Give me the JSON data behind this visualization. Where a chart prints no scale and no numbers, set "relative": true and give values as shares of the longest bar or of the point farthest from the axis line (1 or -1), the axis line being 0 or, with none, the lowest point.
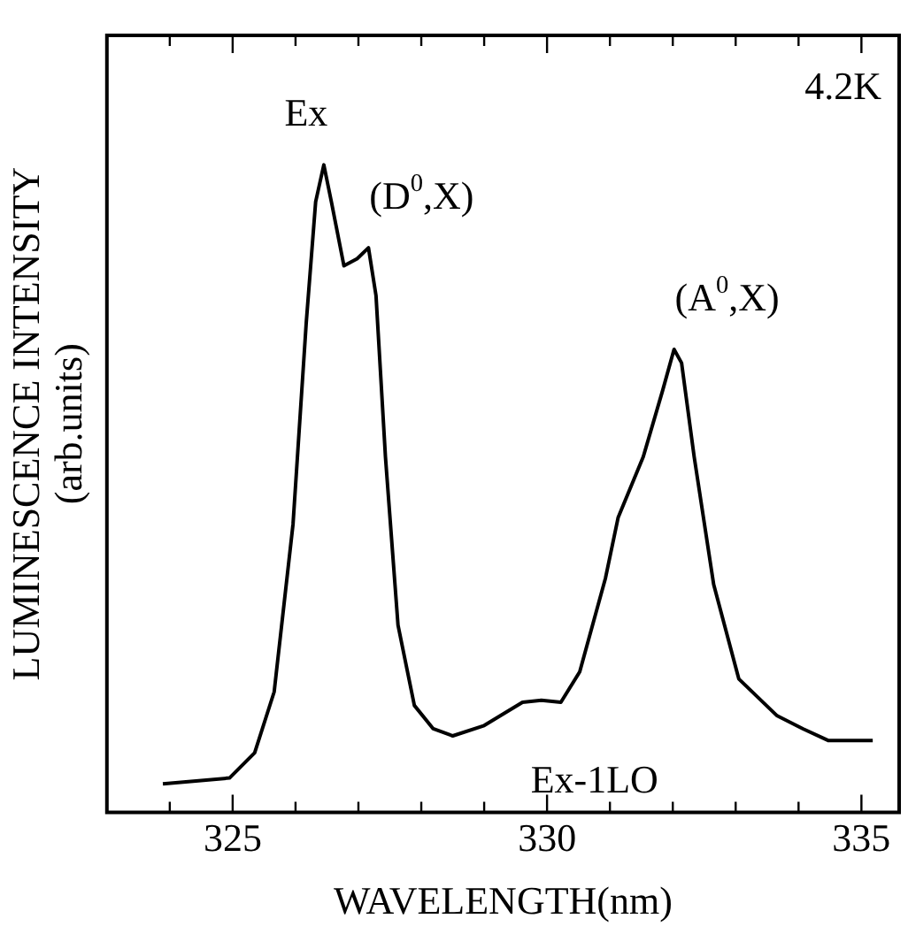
{
  "chart_data": {
    "type": "line",
    "relative": true,
    "xlabel": "WAVELENGTH(nm)",
    "ylabel": "LUMINESCENCE INTENSITY (arb.units)",
    "color": "#000000",
    "marker": "none",
    "line_style": "solid",
    "grid": false,
    "legend": false,
    "xlim": [
      323,
      335.6
    ],
    "xticks": [
      {
        "value": 324,
        "label": null
      },
      325,
      {
        "value": 326,
        "label": null
      },
      {
        "value": 327,
        "label": null
      },
      {
        "value": 328,
        "label": null
      },
      {
        "value": 329,
        "label": null
      },
      330,
      {
        "value": 331,
        "label": null
      },
      {
        "value": 332,
        "label": null
      },
      {
        "value": 333,
        "label": null
      },
      {
        "value": 334,
        "label": null
      },
      335
    ],
    "x": [
      323.89,
      324.95,
      325.35,
      325.66,
      325.96,
      326.17,
      326.32,
      326.45,
      326.57,
      326.77,
      326.98,
      327.16,
      327.28,
      327.43,
      327.63,
      327.89,
      328.19,
      328.5,
      329.0,
      329.61,
      329.91,
      330.22,
      330.52,
      330.93,
      331.13,
      331.53,
      331.84,
      332.02,
      332.14,
      332.34,
      332.65,
      333.05,
      333.66,
      334.07,
      334.47,
      335.18
    ],
    "values": [
      0.044,
      0.053,
      0.092,
      0.186,
      0.445,
      0.756,
      0.943,
      1.0,
      0.943,
      0.844,
      0.855,
      0.872,
      0.798,
      0.549,
      0.289,
      0.165,
      0.129,
      0.118,
      0.134,
      0.17,
      0.173,
      0.17,
      0.217,
      0.362,
      0.455,
      0.549,
      0.652,
      0.715,
      0.694,
      0.549,
      0.352,
      0.206,
      0.149,
      0.129,
      0.111,
      0.111
    ],
    "annotations": [
      "4.2K",
      {
        "text": "Ex",
        "x": 326.45,
        "y": 1.0
      },
      {
        "text": "(D$^{0}$,X)",
        "x": 327.16,
        "y": 0.872
      },
      {
        "text": "(A$^{0}$,X)",
        "x": 332.02,
        "y": 0.715
      },
      {
        "text": "Ex-1LO",
        "x": 329.91,
        "y": 0.173
      }
    ]
  }
}
